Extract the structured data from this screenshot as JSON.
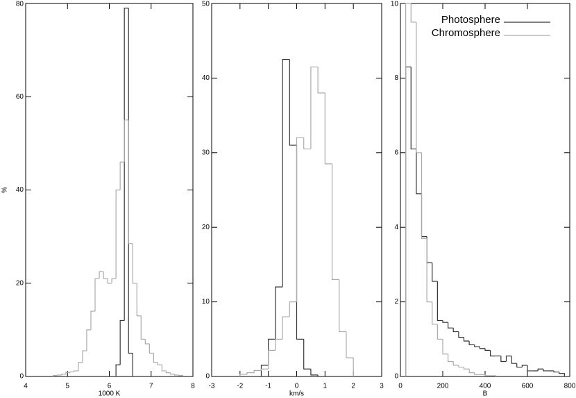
{
  "chart_data": [
    {
      "type": "histogram",
      "xlabel": "1000 K",
      "ylabel": "%",
      "xlim": [
        4,
        8
      ],
      "ylim": [
        0,
        80
      ],
      "xticks": [
        4,
        5,
        6,
        7,
        8
      ],
      "yticks": [
        0,
        20,
        40,
        60,
        80
      ],
      "series": [
        {
          "color": "#333333",
          "bins": [
            6.16,
            6.26,
            6.36,
            6.46,
            6.56,
            6.66
          ],
          "values": [
            2.5,
            12,
            79,
            5,
            0
          ]
        },
        {
          "color": "#aaaaaa",
          "bins": [
            4.66,
            4.76,
            4.86,
            4.96,
            5.06,
            5.16,
            5.26,
            5.36,
            5.46,
            5.56,
            5.66,
            5.76,
            5.86,
            5.96,
            6.06,
            6.16,
            6.26,
            6.36,
            6.46,
            6.56,
            6.66,
            6.76,
            6.86,
            6.96,
            7.06,
            7.16,
            7.26,
            7.36,
            7.46,
            7.56,
            7.66,
            7.76
          ],
          "values": [
            0.2,
            0.3,
            0.5,
            0.8,
            1,
            1.2,
            3,
            5.5,
            10,
            14,
            21,
            22.5,
            21,
            20,
            21,
            40,
            46,
            55,
            28.5,
            20,
            13,
            8,
            7,
            5,
            3,
            2.5,
            1.2,
            0.8,
            0.5,
            0.3,
            0.2
          ]
        }
      ]
    },
    {
      "type": "histogram",
      "xlabel": "km/s",
      "xlim": [
        -3,
        3
      ],
      "ylim": [
        0,
        50
      ],
      "xticks": [
        -3,
        -2,
        -1,
        0,
        1,
        2,
        3
      ],
      "yticks": [
        0,
        10,
        20,
        30,
        40,
        50
      ],
      "series": [
        {
          "color": "#333333",
          "bins": [
            -1.25,
            -1.0,
            -0.75,
            -0.5,
            -0.25,
            0,
            0.25,
            0.5,
            0.75,
            1.0
          ],
          "values": [
            1.5,
            5,
            12,
            42.5,
            31,
            5,
            1,
            0.2,
            0
          ]
        },
        {
          "color": "#aaaaaa",
          "bins": [
            -2.0,
            -1.75,
            -1.5,
            -1.25,
            -1.0,
            -0.75,
            -0.5,
            -0.25,
            0,
            0.25,
            0.5,
            0.75,
            1.0,
            1.25,
            1.5,
            1.75,
            2.0
          ],
          "values": [
            0.3,
            0.5,
            0.8,
            1,
            3.5,
            5,
            8,
            10,
            32,
            30.5,
            41.5,
            38,
            28.5,
            13,
            6,
            2.5
          ]
        }
      ]
    },
    {
      "type": "histogram",
      "xlabel": "B",
      "legend": "upper right",
      "xlim": [
        0,
        800
      ],
      "ylim": [
        0,
        10
      ],
      "xticks": [
        0,
        200,
        400,
        600,
        800
      ],
      "yticks": [
        0,
        2,
        4,
        6,
        8,
        10
      ],
      "series": [
        {
          "name": "Photosphere",
          "color": "#333333",
          "bins": [
            25,
            50,
            75,
            100,
            125,
            150,
            175,
            200,
            225,
            250,
            275,
            300,
            325,
            350,
            375,
            400,
            425,
            450,
            475,
            500,
            525,
            550,
            575,
            600,
            625,
            650,
            675,
            700,
            725,
            750,
            775
          ],
          "values": [
            8.3,
            6.1,
            4.9,
            3.75,
            3.05,
            2.55,
            1.5,
            1.45,
            1.3,
            1.2,
            1.05,
            0.95,
            0.85,
            0.8,
            0.75,
            0.7,
            0.55,
            0.55,
            0.4,
            0.55,
            0.35,
            0.25,
            0.3,
            0.15,
            0.15,
            0.2,
            0.15,
            0.15,
            0.12,
            0.08
          ]
        },
        {
          "name": "Chromosphere",
          "color": "#aaaaaa",
          "bins": [
            25,
            50,
            75,
            100,
            125,
            150,
            175,
            200,
            225,
            250,
            275,
            300,
            325,
            350,
            375,
            400,
            425,
            450
          ],
          "values": [
            10,
            9.5,
            6.0,
            3.7,
            2.0,
            1.4,
            1.0,
            0.6,
            0.4,
            0.3,
            0.25,
            0.2,
            0.1,
            0.05,
            0.05,
            0.02,
            0.02
          ]
        }
      ]
    }
  ]
}
